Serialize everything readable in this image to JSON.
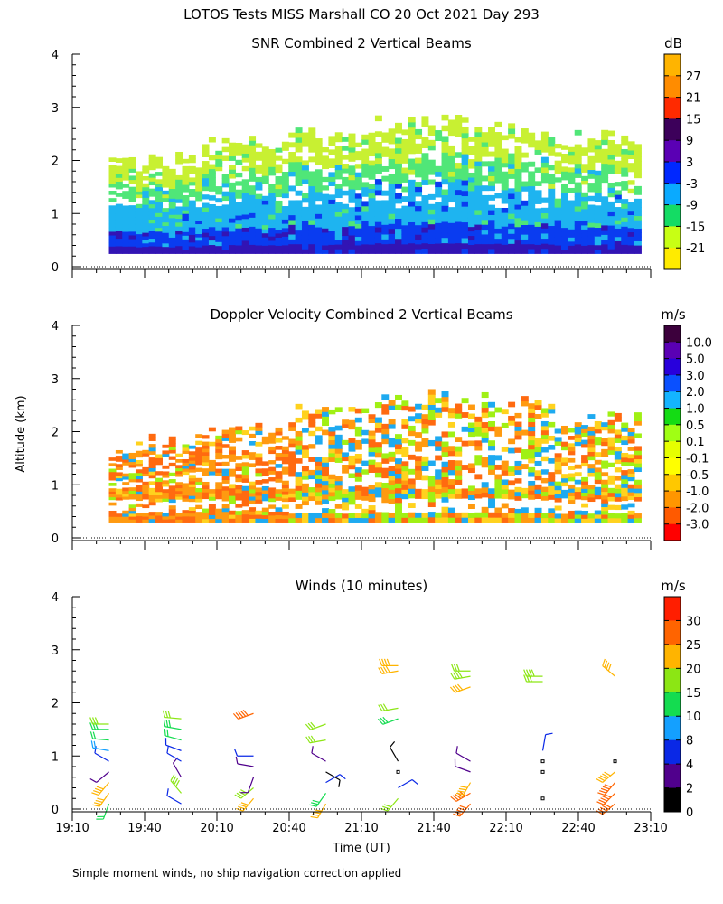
{
  "header": {
    "title": "LOTOS Tests MISS Marshall CO  20 Oct 2021 Day 293"
  },
  "footer": {
    "note": "Simple moment winds, no ship navigation correction applied"
  },
  "chart_data": [
    {
      "type": "heatmap",
      "title": "SNR Combined 2 Vertical Beams",
      "ylabel": "",
      "ylim": [
        0,
        4
      ],
      "yticks": [
        "0",
        "1",
        "2",
        "3",
        "4"
      ],
      "colorbar": {
        "unit": "dB",
        "labels": [
          "27",
          "21",
          "15",
          "9",
          "3",
          "-3",
          "-9",
          "-15",
          "-21"
        ],
        "colors": [
          "#ffb400",
          "#ff8c00",
          "#ff2a00",
          "#3c005a",
          "#5a00b4",
          "#0028ff",
          "#0aaaff",
          "#14dc64",
          "#c8ff14",
          "#ffeb00"
        ],
        "bands": [
          {
            "label": "-21",
            "color": "#c8f032"
          },
          {
            "label": "-15",
            "color": "#50e678"
          },
          {
            "label": "-9",
            "color": "#1eb4f0"
          },
          {
            "label": "-3",
            "color": "#0a3cf0"
          },
          {
            "label": "3",
            "color": "#3214b4"
          }
        ]
      },
      "coverage": {
        "top_km_by_hour": [
          2.0,
          2.3,
          2.5,
          2.7,
          2.6,
          2.4
        ],
        "base_km": 0.25
      }
    },
    {
      "type": "heatmap",
      "title": "Doppler Velocity Combined 2 Vertical Beams",
      "ylabel": "Altitude (km)",
      "ylim": [
        0,
        4
      ],
      "yticks": [
        "0",
        "1",
        "2",
        "3",
        "4"
      ],
      "colorbar": {
        "unit": "m/s",
        "labels": [
          "10.0",
          "5.0",
          "3.0",
          "2.0",
          "1.0",
          "0.5",
          "0.1",
          "-0.1",
          "-0.5",
          "-1.0",
          "-2.0",
          "-3.0"
        ],
        "colors": [
          "#3c003c",
          "#5a00b4",
          "#2800dc",
          "#0a50ff",
          "#14b4ff",
          "#14dc14",
          "#a0ff14",
          "#e6ff00",
          "#ffff00",
          "#ffc800",
          "#ff9600",
          "#ff5a00",
          "#ff0000"
        ],
        "bands": [
          {
            "label": "-2.0",
            "color": "#ff6a10"
          },
          {
            "label": "-1.0",
            "color": "#ff9a10"
          },
          {
            "label": "-0.5",
            "color": "#ffd21e"
          },
          {
            "label": "0.1",
            "color": "#a0f014"
          },
          {
            "label": "1.0",
            "color": "#1eaaf0"
          }
        ]
      },
      "coverage": {
        "top_km_by_hour": [
          1.8,
          2.1,
          2.4,
          2.7,
          2.6,
          2.3
        ],
        "base_km": 0.3
      }
    },
    {
      "type": "scatter",
      "title": "Winds (10 minutes)",
      "xlabel": "Time (UT)",
      "ylabel": "",
      "ylim": [
        0,
        4
      ],
      "yticks": [
        "0",
        "1",
        "2",
        "3",
        "4"
      ],
      "xticks": [
        "19:10",
        "19:40",
        "20:10",
        "20:40",
        "21:10",
        "21:40",
        "22:10",
        "22:40",
        "23:10"
      ],
      "xlim_hours": [
        19.1667,
        23.1667
      ],
      "colorbar": {
        "unit": "m/s",
        "labels": [
          "30",
          "25",
          "20",
          "15",
          "10",
          "8",
          "4",
          "2",
          "0"
        ],
        "colors": [
          "#ff1e00",
          "#ff6400",
          "#ffb400",
          "#8ce614",
          "#14dc50",
          "#14a0ff",
          "#0a28e6",
          "#50008c",
          "#000000"
        ]
      },
      "profiles": [
        {
          "time": 19.42,
          "barbs": [
            {
              "alt": 0.1,
              "dir": 200,
              "speed": 10
            },
            {
              "alt": 0.3,
              "dir": 215,
              "speed": 20
            },
            {
              "alt": 0.5,
              "dir": 220,
              "speed": 20
            },
            {
              "alt": 0.7,
              "dir": 230,
              "speed": 2
            },
            {
              "alt": 0.9,
              "dir": 300,
              "speed": 4
            },
            {
              "alt": 1.1,
              "dir": 280,
              "speed": 8
            },
            {
              "alt": 1.3,
              "dir": 275,
              "speed": 10
            },
            {
              "alt": 1.5,
              "dir": 270,
              "speed": 13
            },
            {
              "alt": 1.6,
              "dir": 270,
              "speed": 15
            }
          ]
        },
        {
          "time": 19.92,
          "barbs": [
            {
              "alt": 0.1,
              "dir": 300,
              "speed": 4
            },
            {
              "alt": 0.3,
              "dir": 320,
              "speed": 18
            },
            {
              "alt": 0.6,
              "dir": 330,
              "speed": 2
            },
            {
              "alt": 0.9,
              "dir": 300,
              "speed": 4
            },
            {
              "alt": 1.1,
              "dir": 290,
              "speed": 6
            },
            {
              "alt": 1.3,
              "dir": 285,
              "speed": 11
            },
            {
              "alt": 1.5,
              "dir": 280,
              "speed": 14
            },
            {
              "alt": 1.7,
              "dir": 275,
              "speed": 16
            }
          ]
        },
        {
          "time": 20.42,
          "barbs": [
            {
              "alt": 0.2,
              "dir": 220,
              "speed": 22
            },
            {
              "alt": 0.4,
              "dir": 230,
              "speed": 18
            },
            {
              "alt": 0.6,
              "dir": 200,
              "speed": 2
            },
            {
              "alt": 0.8,
              "dir": 280,
              "speed": 3
            },
            {
              "alt": 1.0,
              "dir": 270,
              "speed": 5
            },
            {
              "alt": 1.8,
              "dir": 250,
              "speed": 28
            }
          ]
        },
        {
          "time": 20.92,
          "barbs": [
            {
              "alt": 0.1,
              "dir": 210,
              "speed": 20
            },
            {
              "alt": 0.3,
              "dir": 215,
              "speed": 14
            },
            {
              "alt": 0.5,
              "dir": 60,
              "speed": 6
            },
            {
              "alt": 0.7,
              "dir": 120,
              "speed": 1
            },
            {
              "alt": 0.9,
              "dir": 300,
              "speed": 3
            },
            {
              "alt": 1.3,
              "dir": 260,
              "speed": 15
            },
            {
              "alt": 1.6,
              "dir": 250,
              "speed": 17
            }
          ]
        },
        {
          "time": 21.42,
          "barbs": [
            {
              "alt": 0.2,
              "dir": 220,
              "speed": 16
            },
            {
              "alt": 0.4,
              "dir": 60,
              "speed": 6
            },
            {
              "alt": 0.7,
              "dir": 120,
              "speed": 0
            },
            {
              "alt": 0.9,
              "dir": 330,
              "speed": 1
            },
            {
              "alt": 1.7,
              "dir": 250,
              "speed": 13
            },
            {
              "alt": 1.9,
              "dir": 260,
              "speed": 15
            },
            {
              "alt": 2.6,
              "dir": 260,
              "speed": 22
            },
            {
              "alt": 2.7,
              "dir": 270,
              "speed": 22
            }
          ]
        },
        {
          "time": 21.92,
          "barbs": [
            {
              "alt": 0.1,
              "dir": 220,
              "speed": 27
            },
            {
              "alt": 0.3,
              "dir": 240,
              "speed": 26
            },
            {
              "alt": 0.5,
              "dir": 210,
              "speed": 24
            },
            {
              "alt": 0.7,
              "dir": 290,
              "speed": 2
            },
            {
              "alt": 0.9,
              "dir": 300,
              "speed": 3
            },
            {
              "alt": 2.3,
              "dir": 250,
              "speed": 22
            },
            {
              "alt": 2.5,
              "dir": 260,
              "speed": 18
            },
            {
              "alt": 2.6,
              "dir": 270,
              "speed": 16
            }
          ]
        },
        {
          "time": 22.42,
          "barbs": [
            {
              "alt": 0.2,
              "dir": 0,
              "speed": 0
            },
            {
              "alt": 0.7,
              "dir": 120,
              "speed": 0
            },
            {
              "alt": 0.9,
              "dir": 0,
              "speed": 0
            },
            {
              "alt": 1.1,
              "dir": 10,
              "speed": 5
            },
            {
              "alt": 2.4,
              "dir": 270,
              "speed": 17
            },
            {
              "alt": 2.5,
              "dir": 270,
              "speed": 18
            }
          ]
        },
        {
          "time": 22.92,
          "barbs": [
            {
              "alt": 0.1,
              "dir": 230,
              "speed": 28
            },
            {
              "alt": 0.3,
              "dir": 225,
              "speed": 27
            },
            {
              "alt": 0.5,
              "dir": 220,
              "speed": 25
            },
            {
              "alt": 0.7,
              "dir": 230,
              "speed": 24
            },
            {
              "alt": 0.9,
              "dir": 0,
              "speed": 0
            },
            {
              "alt": 2.5,
              "dir": 310,
              "speed": 22
            }
          ]
        }
      ]
    }
  ]
}
